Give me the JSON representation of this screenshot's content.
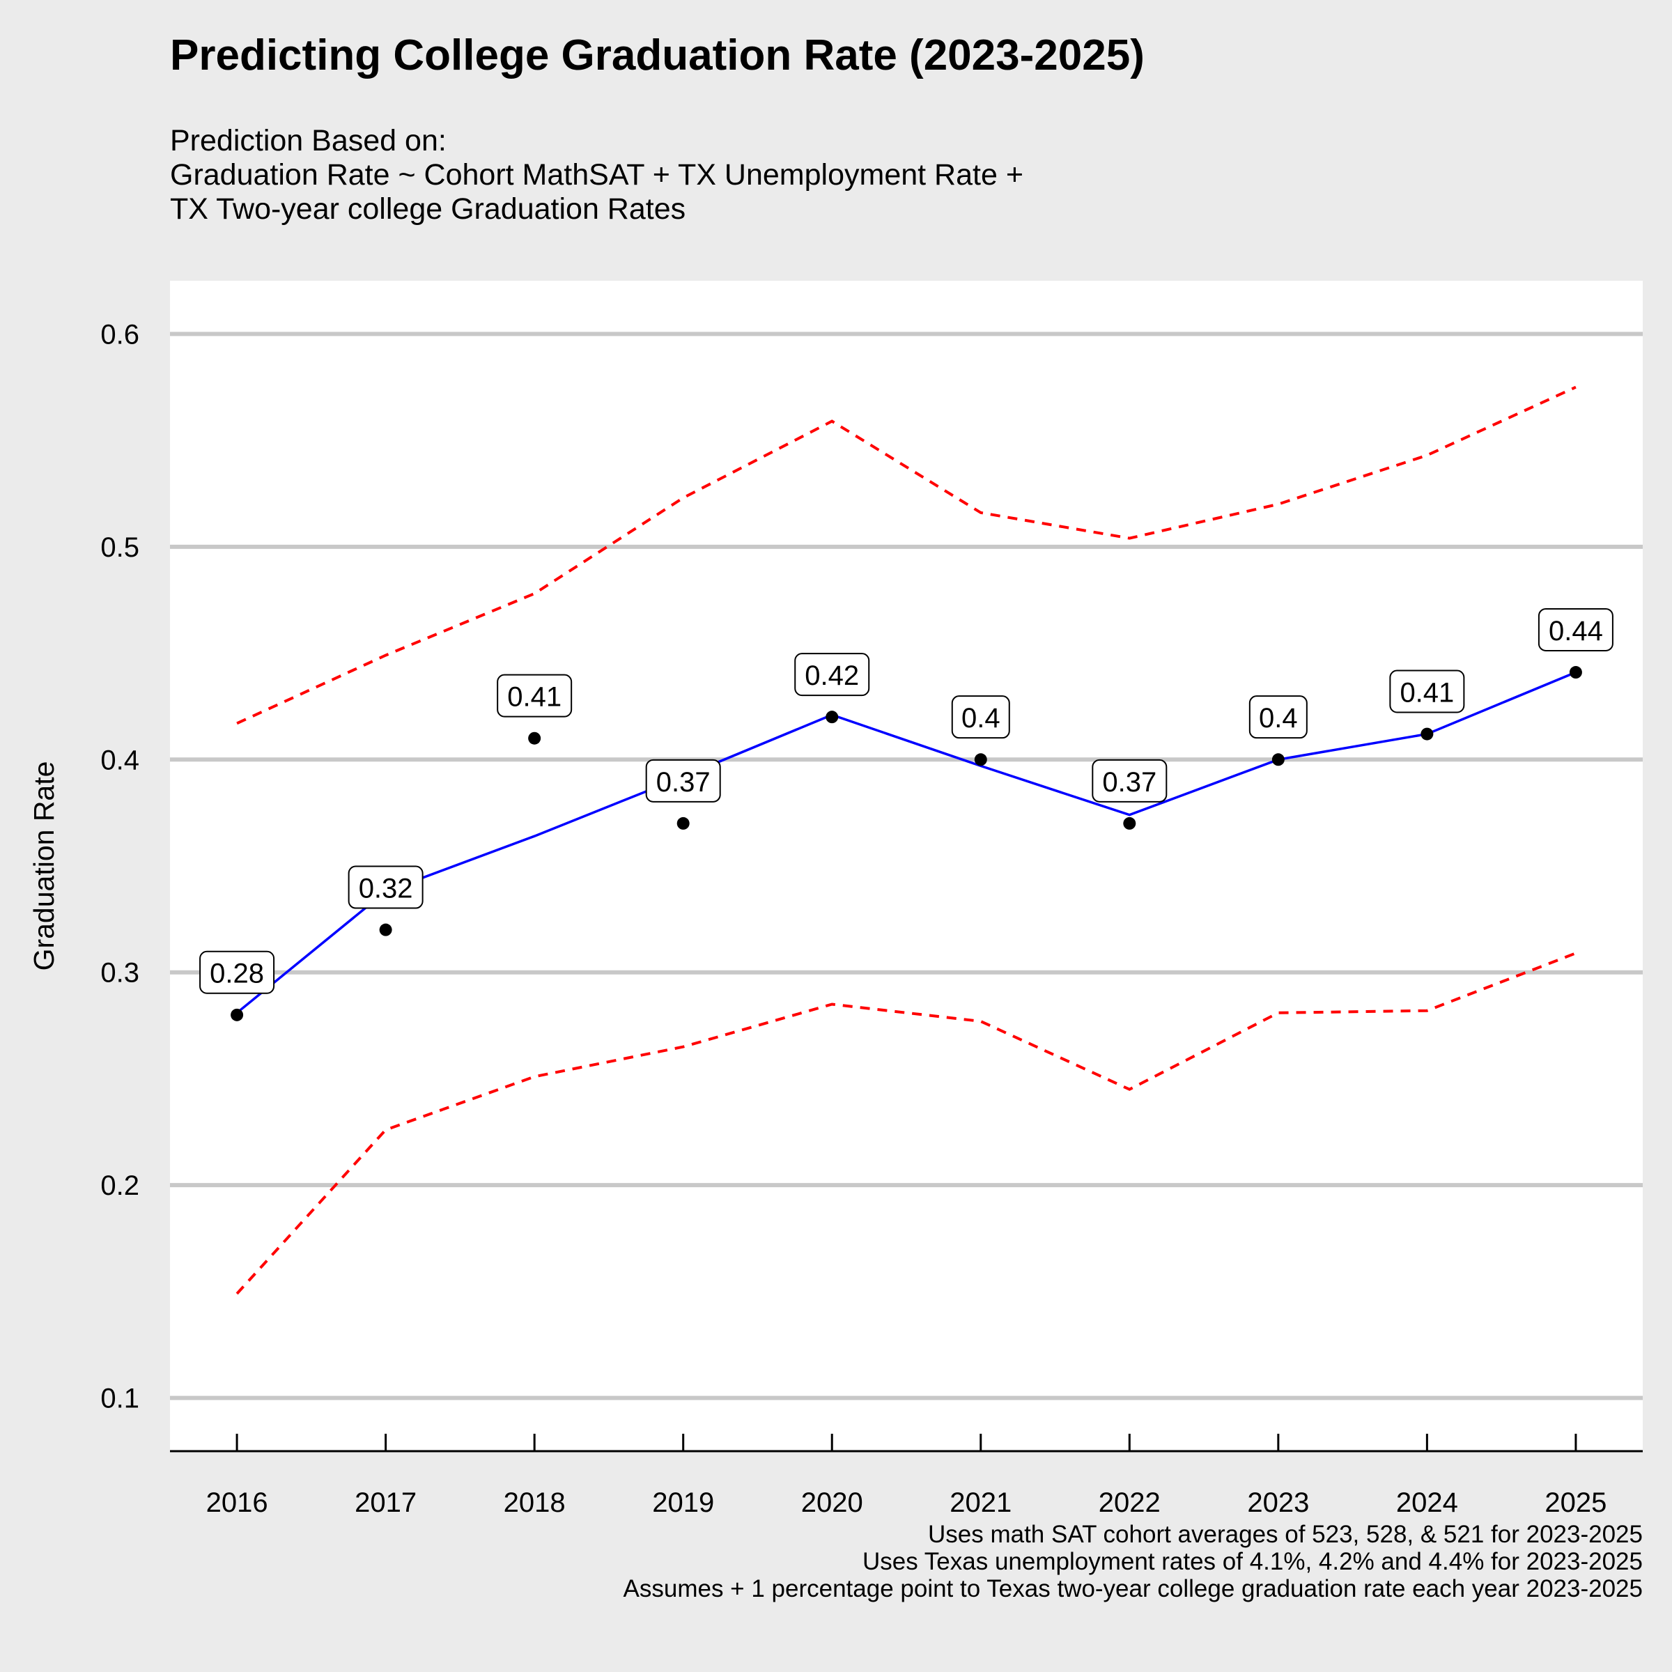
{
  "chart_data": {
    "type": "line",
    "title": "Predicting College Graduation Rate (2023-2025)",
    "subtitle": [
      "Prediction Based on:",
      "Graduation Rate ~ Cohort MathSAT + TX Unemployment Rate +",
      "TX Two-year college Graduation Rates"
    ],
    "xlabel": "",
    "ylabel": "Graduation Rate",
    "x": [
      2016,
      2017,
      2018,
      2019,
      2020,
      2021,
      2022,
      2023,
      2024,
      2025
    ],
    "x_tick_labels": [
      "2016",
      "2017",
      "2018",
      "2019",
      "2020",
      "2021",
      "2022",
      "2023",
      "2024",
      "2025"
    ],
    "y_ticks": [
      0.1,
      0.2,
      0.3,
      0.4,
      0.5,
      0.6
    ],
    "y_tick_labels": [
      "0.1",
      "0.2",
      "0.3",
      "0.4",
      "0.5",
      "0.6"
    ],
    "ylim": [
      0.075,
      0.625
    ],
    "xlim": [
      2015.55,
      2025.45
    ],
    "grid": "horizontal",
    "series": [
      {
        "kind": "line",
        "style": "solid",
        "color": "#0000ff",
        "values": [
          0.281,
          0.338,
          0.364,
          0.392,
          0.421,
          0.397,
          0.374,
          0.4,
          0.412,
          0.441
        ]
      },
      {
        "kind": "line",
        "style": "dashed",
        "color": "#ff0000",
        "values": [
          0.417,
          0.449,
          0.478,
          0.523,
          0.559,
          0.516,
          0.504,
          0.52,
          0.543,
          0.575
        ]
      },
      {
        "kind": "line",
        "style": "dashed",
        "color": "#ff0000",
        "values": [
          0.149,
          0.226,
          0.251,
          0.265,
          0.285,
          0.277,
          0.245,
          0.281,
          0.282,
          0.309
        ]
      },
      {
        "kind": "points",
        "color": "#000000",
        "values": [
          0.28,
          0.32,
          0.41,
          0.37,
          0.42,
          0.4,
          0.37,
          0.4,
          0.412,
          0.441
        ]
      }
    ],
    "data_labels": [
      {
        "x": 2016,
        "y": 0.3,
        "text": "0.28"
      },
      {
        "x": 2017,
        "y": 0.34,
        "text": "0.32"
      },
      {
        "x": 2018,
        "y": 0.43,
        "text": "0.41"
      },
      {
        "x": 2019,
        "y": 0.39,
        "text": "0.37"
      },
      {
        "x": 2020,
        "y": 0.44,
        "text": "0.42"
      },
      {
        "x": 2021,
        "y": 0.42,
        "text": "0.4"
      },
      {
        "x": 2022,
        "y": 0.39,
        "text": "0.37"
      },
      {
        "x": 2023,
        "y": 0.42,
        "text": "0.4"
      },
      {
        "x": 2024,
        "y": 0.432,
        "text": "0.41"
      },
      {
        "x": 2025,
        "y": 0.461,
        "text": "0.44"
      }
    ],
    "caption": [
      "Uses math SAT cohort averages of 523, 528, & 521 for 2023-2025",
      "Uses Texas unemployment rates of 4.1%, 4.2% and 4.4% for 2023-2025",
      "Assumes + 1 percentage point to Texas two-year college graduation rate each year 2023-2025"
    ],
    "colors": {
      "page_background": "#ebebeb",
      "panel_background": "#ffffff",
      "gridline": "#c8c8c8"
    }
  }
}
